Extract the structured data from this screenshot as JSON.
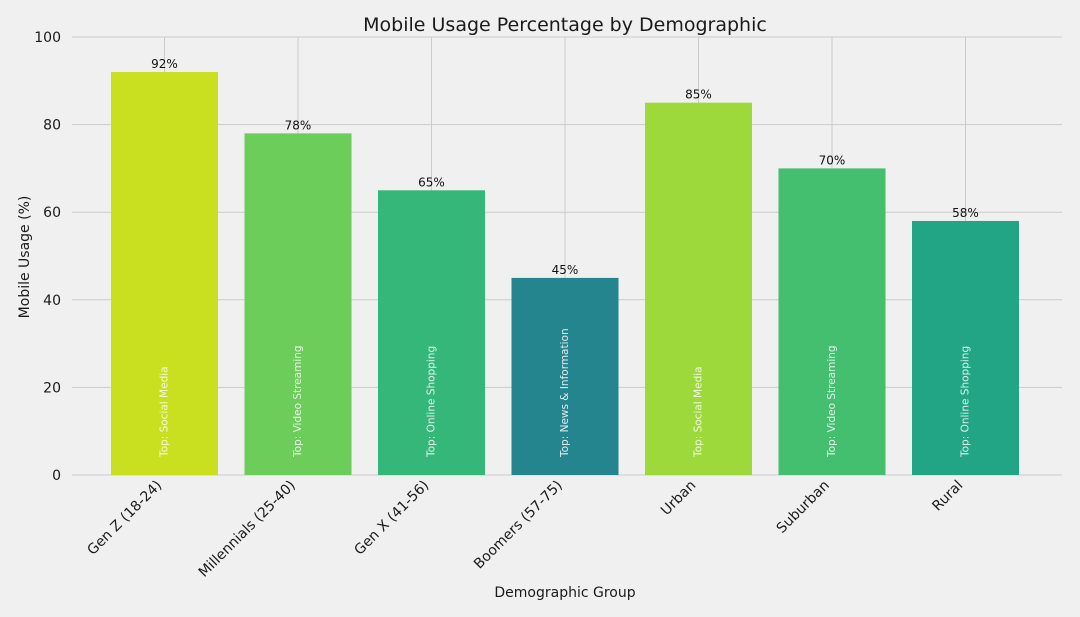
{
  "chart_data": {
    "type": "bar",
    "title": "Mobile Usage Percentage by Demographic",
    "xlabel": "Demographic Group",
    "ylabel": "Mobile Usage (%)",
    "ylim": [
      0,
      100
    ],
    "yticks": [
      0,
      20,
      40,
      60,
      80,
      100
    ],
    "grid": true,
    "categories": [
      "Gen Z (18-24)",
      "Millennials (25-40)",
      "Gen X (41-56)",
      "Boomers (57-75)",
      "Urban",
      "Suburban",
      "Rural"
    ],
    "values": [
      92,
      78,
      65,
      45,
      85,
      70,
      58
    ],
    "value_labels": [
      "92%",
      "78%",
      "65%",
      "45%",
      "85%",
      "70%",
      "58%"
    ],
    "bar_annotations": [
      "Top: Social Media",
      "Top: Video Streaming",
      "Top: Online Shopping",
      "Top: News & Information",
      "Top: Social Media",
      "Top: Video Streaming",
      "Top: Online Shopping"
    ],
    "colors": [
      "#c8e020",
      "#6ccd5a",
      "#35b779",
      "#25858e",
      "#9dd93b",
      "#44bf70",
      "#21a585"
    ]
  },
  "colors": {
    "background": "#f0f0f0",
    "grid": "#cbcbcb",
    "text": "#1a1a1a"
  }
}
